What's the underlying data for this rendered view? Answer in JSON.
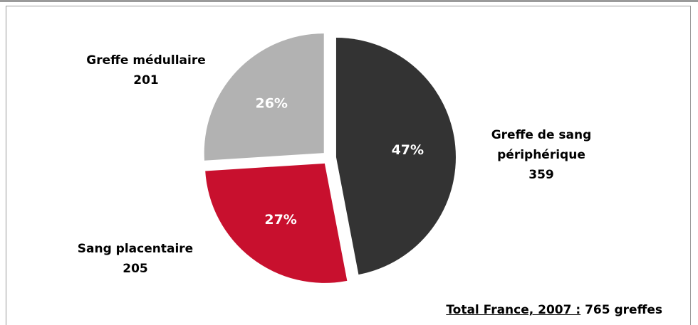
{
  "chart_data": {
    "type": "pie",
    "categories": [
      "Greffe de sang périphérique",
      "Sang placentaire",
      "Greffe médullaire"
    ],
    "values": [
      47,
      27,
      26
    ],
    "value_labels": [
      "47%",
      "27%",
      "26%"
    ],
    "counts": [
      359,
      205,
      201
    ],
    "colors": [
      "#333333",
      "#c8102e",
      "#b2b2b2"
    ],
    "exploded": true,
    "footer": {
      "label": "Total France, 2007 :",
      "value": "765 greffes"
    }
  }
}
